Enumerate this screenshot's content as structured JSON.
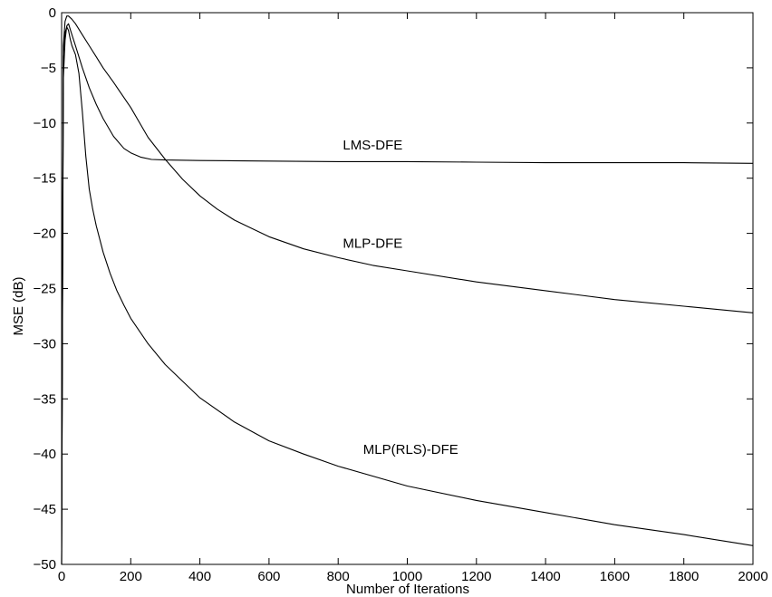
{
  "chart_data": {
    "type": "line",
    "title": "",
    "xlabel": "Number of Iterations",
    "ylabel": "MSE (dB)",
    "xlim": [
      0,
      2000
    ],
    "ylim": [
      -50,
      0
    ],
    "xticks": [
      0,
      200,
      400,
      600,
      800,
      1000,
      1200,
      1400,
      1600,
      1800,
      2000
    ],
    "yticks": [
      0,
      -5,
      -10,
      -15,
      -20,
      -25,
      -30,
      -35,
      -40,
      -45,
      -50
    ],
    "grid": false,
    "legend": "none",
    "series": [
      {
        "name": "LMS-DFE",
        "x": [
          0,
          5,
          10,
          15,
          20,
          30,
          40,
          50,
          60,
          80,
          100,
          120,
          150,
          180,
          200,
          230,
          260,
          300,
          400,
          600,
          800,
          1000,
          1200,
          1400,
          1600,
          1800,
          2000
        ],
        "y": [
          -50,
          -6,
          -2.5,
          -1.2,
          -1.0,
          -2.0,
          -3.0,
          -4.0,
          -5.0,
          -6.8,
          -8.3,
          -9.6,
          -11.2,
          -12.3,
          -12.7,
          -13.1,
          -13.3,
          -13.35,
          -13.4,
          -13.45,
          -13.5,
          -13.5,
          -13.55,
          -13.6,
          -13.6,
          -13.6,
          -13.65
        ],
        "label_at": [
          900,
          -12.4
        ]
      },
      {
        "name": "MLP-DFE",
        "x": [
          0,
          5,
          10,
          15,
          20,
          30,
          40,
          50,
          60,
          80,
          100,
          120,
          150,
          200,
          250,
          300,
          350,
          400,
          450,
          500,
          600,
          700,
          800,
          900,
          1000,
          1200,
          1400,
          1600,
          1800,
          2000
        ],
        "y": [
          -50,
          -3,
          -0.8,
          -0.3,
          -0.3,
          -0.6,
          -1.0,
          -1.5,
          -2.0,
          -3.0,
          -4.0,
          -5.0,
          -6.3,
          -8.6,
          -11.3,
          -13.3,
          -15.1,
          -16.6,
          -17.8,
          -18.8,
          -20.3,
          -21.4,
          -22.2,
          -22.9,
          -23.4,
          -24.4,
          -25.2,
          -26.0,
          -26.6,
          -27.2
        ],
        "label_at": [
          900,
          -21.3
        ]
      },
      {
        "name": "MLP(RLS)-DFE",
        "x": [
          0,
          5,
          10,
          15,
          20,
          25,
          30,
          40,
          50,
          60,
          70,
          80,
          90,
          100,
          120,
          140,
          160,
          180,
          200,
          250,
          300,
          400,
          500,
          600,
          700,
          800,
          1000,
          1200,
          1400,
          1600,
          1800,
          2000
        ],
        "y": [
          -50,
          -4,
          -1.8,
          -1.3,
          -1.6,
          -2.4,
          -3.0,
          -3.8,
          -5.5,
          -9.0,
          -13.0,
          -16.0,
          -17.8,
          -19.3,
          -21.7,
          -23.6,
          -25.2,
          -26.5,
          -27.7,
          -30.0,
          -31.9,
          -34.9,
          -37.1,
          -38.8,
          -40.0,
          -41.1,
          -42.9,
          -44.2,
          -45.3,
          -46.4,
          -47.3,
          -48.3
        ],
        "label_at": [
          1010,
          -40.0
        ]
      }
    ]
  }
}
